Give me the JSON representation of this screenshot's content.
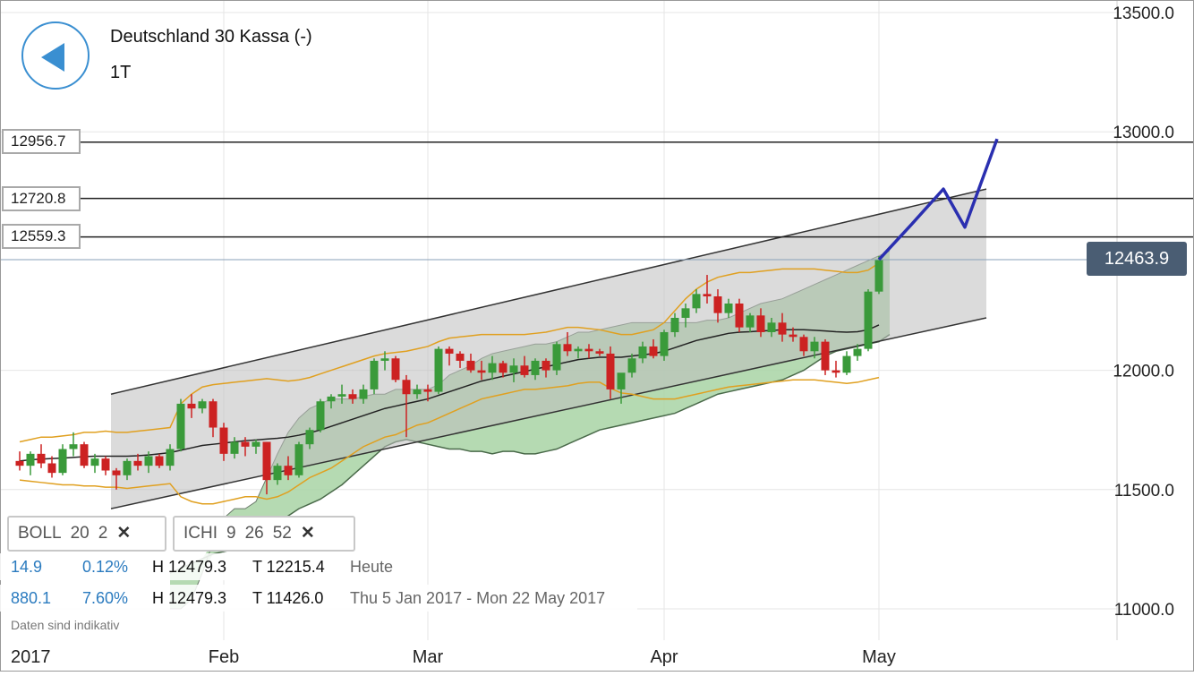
{
  "header": {
    "instrument": "Deutschland 30 Kassa (-)",
    "timeframe": "1T"
  },
  "price_levels": [
    "12956.7",
    "12720.8",
    "12559.3"
  ],
  "current_price": "12463.9",
  "indicators": [
    {
      "name": "BOLL",
      "params": [
        "20",
        "2"
      ]
    },
    {
      "name": "ICHI",
      "params": [
        "9",
        "26",
        "52"
      ]
    }
  ],
  "stats": [
    {
      "a": "14.9",
      "b": "0.12%",
      "h": "H 12479.3",
      "t": "T 12215.4",
      "label": "Heute"
    },
    {
      "a": "880.1",
      "b": "7.60%",
      "h": "H 12479.3",
      "t": "T 11426.0",
      "label": "Thu 5 Jan 2017 - Mon 22 May 2017"
    }
  ],
  "disclaimer": "Daten sind indikativ",
  "colors": {
    "up": "#3a9a3a",
    "down": "#cc2222",
    "accent": "#3a8fd1",
    "cloud": "#a8d3a4",
    "channel": "#bdbdbd",
    "projection": "#2a2fb0"
  },
  "chart_data": {
    "type": "candlestick",
    "title": "Deutschland 30 Kassa (-)",
    "xlabel": "",
    "ylabel": "",
    "ylim": [
      10950,
      13550
    ],
    "yticks": [
      "13500.0",
      "13000.0",
      "12000.0",
      "11500.0",
      "11000.0"
    ],
    "ytick_values": [
      13500,
      13000,
      12000,
      11500,
      11000
    ],
    "xtick_labels": [
      "2017",
      "Feb",
      "Mar",
      "Apr",
      "May"
    ],
    "xtick_index": [
      0,
      19,
      38,
      60,
      80
    ],
    "horizontal_levels": [
      12956.7,
      12720.8,
      12559.3
    ],
    "current_price": 12463.9,
    "candles": [
      [
        11620,
        11660,
        11580,
        11600
      ],
      [
        11600,
        11660,
        11560,
        11650
      ],
      [
        11650,
        11690,
        11590,
        11610
      ],
      [
        11610,
        11640,
        11550,
        11570
      ],
      [
        11570,
        11690,
        11560,
        11670
      ],
      [
        11670,
        11740,
        11640,
        11690
      ],
      [
        11690,
        11700,
        11590,
        11600
      ],
      [
        11600,
        11650,
        11570,
        11630
      ],
      [
        11630,
        11640,
        11560,
        11580
      ],
      [
        11580,
        11590,
        11500,
        11560
      ],
      [
        11560,
        11630,
        11540,
        11620
      ],
      [
        11620,
        11650,
        11580,
        11600
      ],
      [
        11600,
        11660,
        11570,
        11640
      ],
      [
        11640,
        11650,
        11590,
        11600
      ],
      [
        11600,
        11690,
        11580,
        11670
      ],
      [
        11670,
        11880,
        11660,
        11860
      ],
      [
        11860,
        11900,
        11800,
        11840
      ],
      [
        11840,
        11880,
        11820,
        11870
      ],
      [
        11870,
        11880,
        11720,
        11760
      ],
      [
        11760,
        11780,
        11620,
        11650
      ],
      [
        11650,
        11720,
        11630,
        11700
      ],
      [
        11700,
        11720,
        11640,
        11680
      ],
      [
        11680,
        11710,
        11650,
        11700
      ],
      [
        11700,
        11700,
        11480,
        11540
      ],
      [
        11540,
        11610,
        11520,
        11600
      ],
      [
        11600,
        11640,
        11540,
        11560
      ],
      [
        11560,
        11700,
        11550,
        11690
      ],
      [
        11690,
        11760,
        11670,
        11750
      ],
      [
        11750,
        11880,
        11740,
        11870
      ],
      [
        11870,
        11900,
        11840,
        11890
      ],
      [
        11890,
        11940,
        11860,
        11900
      ],
      [
        11900,
        11920,
        11860,
        11880
      ],
      [
        11880,
        11940,
        11860,
        11920
      ],
      [
        11920,
        12050,
        11900,
        12040
      ],
      [
        12040,
        12080,
        12000,
        12050
      ],
      [
        12050,
        12060,
        11950,
        11960
      ],
      [
        11960,
        11980,
        11720,
        11900
      ],
      [
        11900,
        11940,
        11880,
        11920
      ],
      [
        11920,
        11940,
        11870,
        11910
      ],
      [
        11910,
        12100,
        11900,
        12090
      ],
      [
        12090,
        12100,
        12020,
        12070
      ],
      [
        12070,
        12080,
        12010,
        12040
      ],
      [
        12040,
        12070,
        11990,
        12000
      ],
      [
        12000,
        12040,
        11960,
        11990
      ],
      [
        11990,
        12060,
        11960,
        12030
      ],
      [
        12030,
        12040,
        11970,
        11990
      ],
      [
        11990,
        12050,
        11950,
        12020
      ],
      [
        12020,
        12060,
        11970,
        11980
      ],
      [
        11980,
        12050,
        11960,
        12040
      ],
      [
        12040,
        12050,
        11970,
        12000
      ],
      [
        12000,
        12120,
        11980,
        12110
      ],
      [
        12110,
        12160,
        12060,
        12080
      ],
      [
        12080,
        12100,
        12050,
        12090
      ],
      [
        12090,
        12110,
        12050,
        12080
      ],
      [
        12080,
        12090,
        12060,
        12070
      ],
      [
        12070,
        12100,
        11880,
        11920
      ],
      [
        11920,
        11980,
        11860,
        11990
      ],
      [
        11990,
        12070,
        11970,
        12050
      ],
      [
        12050,
        12120,
        12030,
        12100
      ],
      [
        12100,
        12130,
        12050,
        12060
      ],
      [
        12060,
        12170,
        12040,
        12160
      ],
      [
        12160,
        12240,
        12140,
        12220
      ],
      [
        12220,
        12280,
        12180,
        12260
      ],
      [
        12260,
        12340,
        12240,
        12320
      ],
      [
        12320,
        12400,
        12280,
        12310
      ],
      [
        12310,
        12340,
        12200,
        12240
      ],
      [
        12240,
        12300,
        12220,
        12280
      ],
      [
        12280,
        12300,
        12160,
        12180
      ],
      [
        12180,
        12240,
        12160,
        12230
      ],
      [
        12230,
        12260,
        12140,
        12160
      ],
      [
        12160,
        12220,
        12140,
        12200
      ],
      [
        12200,
        12240,
        12120,
        12150
      ],
      [
        12150,
        12180,
        12120,
        12140
      ],
      [
        12140,
        12150,
        12060,
        12080
      ],
      [
        12080,
        12140,
        12050,
        12120
      ],
      [
        12120,
        12130,
        11980,
        12000
      ],
      [
        12000,
        12040,
        11970,
        11990
      ],
      [
        11990,
        12080,
        11980,
        12060
      ],
      [
        12060,
        12110,
        12040,
        12090
      ],
      [
        12090,
        12340,
        12080,
        12330
      ],
      [
        12330,
        12479,
        12320,
        12464
      ]
    ],
    "boll_upper": [
      11700,
      11710,
      11720,
      11720,
      11725,
      11730,
      11740,
      11740,
      11745,
      11740,
      11740,
      11745,
      11750,
      11755,
      11760,
      11860,
      11900,
      11930,
      11940,
      11945,
      11950,
      11955,
      11960,
      11965,
      11960,
      11955,
      11960,
      11970,
      11985,
      12000,
      12015,
      12030,
      12045,
      12060,
      12070,
      12075,
      12080,
      12090,
      12100,
      12120,
      12135,
      12140,
      12145,
      12150,
      12150,
      12150,
      12150,
      12150,
      12155,
      12160,
      12170,
      12180,
      12180,
      12175,
      12170,
      12160,
      12150,
      12150,
      12160,
      12170,
      12200,
      12250,
      12300,
      12340,
      12370,
      12390,
      12400,
      12410,
      12410,
      12415,
      12420,
      12425,
      12425,
      12425,
      12425,
      12420,
      12415,
      12410,
      12410,
      12420,
      12450
    ],
    "boll_lower": [
      11540,
      11535,
      11530,
      11525,
      11520,
      11520,
      11515,
      11515,
      11510,
      11510,
      11505,
      11510,
      11515,
      11520,
      11525,
      11470,
      11450,
      11440,
      11440,
      11450,
      11460,
      11470,
      11470,
      11460,
      11470,
      11490,
      11520,
      11550,
      11570,
      11590,
      11620,
      11650,
      11680,
      11700,
      11720,
      11730,
      11750,
      11770,
      11780,
      11800,
      11820,
      11840,
      11860,
      11880,
      11890,
      11900,
      11910,
      11920,
      11920,
      11925,
      11930,
      11935,
      11945,
      11950,
      11950,
      11925,
      11905,
      11900,
      11890,
      11880,
      11880,
      11880,
      11890,
      11900,
      11910,
      11920,
      11930,
      11935,
      11940,
      11945,
      11950,
      11955,
      11960,
      11960,
      11960,
      11955,
      11950,
      11945,
      11950,
      11960,
      11970
    ],
    "boll_mid": [
      11620,
      11625,
      11628,
      11630,
      11632,
      11635,
      11638,
      11640,
      11640,
      11640,
      11640,
      11642,
      11645,
      11650,
      11655,
      11665,
      11675,
      11685,
      11690,
      11695,
      11700,
      11705,
      11708,
      11712,
      11715,
      11720,
      11728,
      11738,
      11750,
      11765,
      11780,
      11795,
      11810,
      11825,
      11840,
      11850,
      11860,
      11870,
      11880,
      11895,
      11910,
      11925,
      11940,
      11955,
      11965,
      11975,
      11985,
      11995,
      12005,
      12015,
      12025,
      12035,
      12045,
      12050,
      12055,
      12055,
      12055,
      12060,
      12065,
      12070,
      12080,
      12095,
      12110,
      12125,
      12135,
      12145,
      12155,
      12160,
      12162,
      12165,
      12167,
      12170,
      12170,
      12170,
      12168,
      12165,
      12162,
      12160,
      12162,
      12170,
      12190
    ],
    "ichimoku_span_a": [
      11150,
      11170,
      11190,
      11210,
      11230,
      11240,
      11250,
      11270,
      11300,
      11330,
      11360,
      11390,
      11420,
      11440,
      11460,
      11490,
      11520,
      11560,
      11600,
      11640,
      11680,
      11700,
      11710,
      11700,
      11690,
      11680,
      11670,
      11670,
      11660,
      11660,
      11650,
      11660,
      11660,
      11650,
      11650,
      11660,
      11670,
      11690,
      11710,
      11730,
      11750,
      11760,
      11770,
      11780,
      11790,
      11800,
      11810,
      11820,
      11840,
      11860,
      11880,
      11900,
      11910,
      11920,
      11930,
      11940,
      11950,
      11960,
      11980,
      12000,
      12030,
      12060,
      12080,
      12090,
      12100,
      12110,
      12120,
      12150
    ],
    "ichimoku_span_b": [
      11000,
      11000,
      11040,
      11150,
      11280,
      11380,
      11420,
      11420,
      11450,
      11550,
      11650,
      11740,
      11800,
      11840,
      11860,
      11880,
      11880,
      11880,
      11890,
      11900,
      11900,
      11920,
      11920,
      11920,
      11920,
      11940,
      11980,
      12000,
      12020,
      12050,
      12070,
      12080,
      12090,
      12100,
      12110,
      12110,
      12120,
      12140,
      12160,
      12160,
      12170,
      12180,
      12190,
      12200,
      12200,
      12200,
      12200,
      12200,
      12200,
      12200,
      12210,
      12210,
      12220,
      12240,
      12260,
      12280,
      12290,
      12300,
      12320,
      12340,
      12360,
      12380,
      12400,
      12420,
      12440,
      12460,
      12480,
      12500
    ],
    "channel": {
      "upper": [
        [
          5,
          11900
        ],
        [
          90,
          12760
        ]
      ],
      "lower": [
        [
          5,
          11420
        ],
        [
          90,
          12220
        ]
      ]
    },
    "projection": [
      [
        80,
        12464
      ],
      [
        83,
        12610
      ],
      [
        86,
        12760
      ],
      [
        88,
        12600
      ],
      [
        91,
        12970
      ]
    ]
  }
}
